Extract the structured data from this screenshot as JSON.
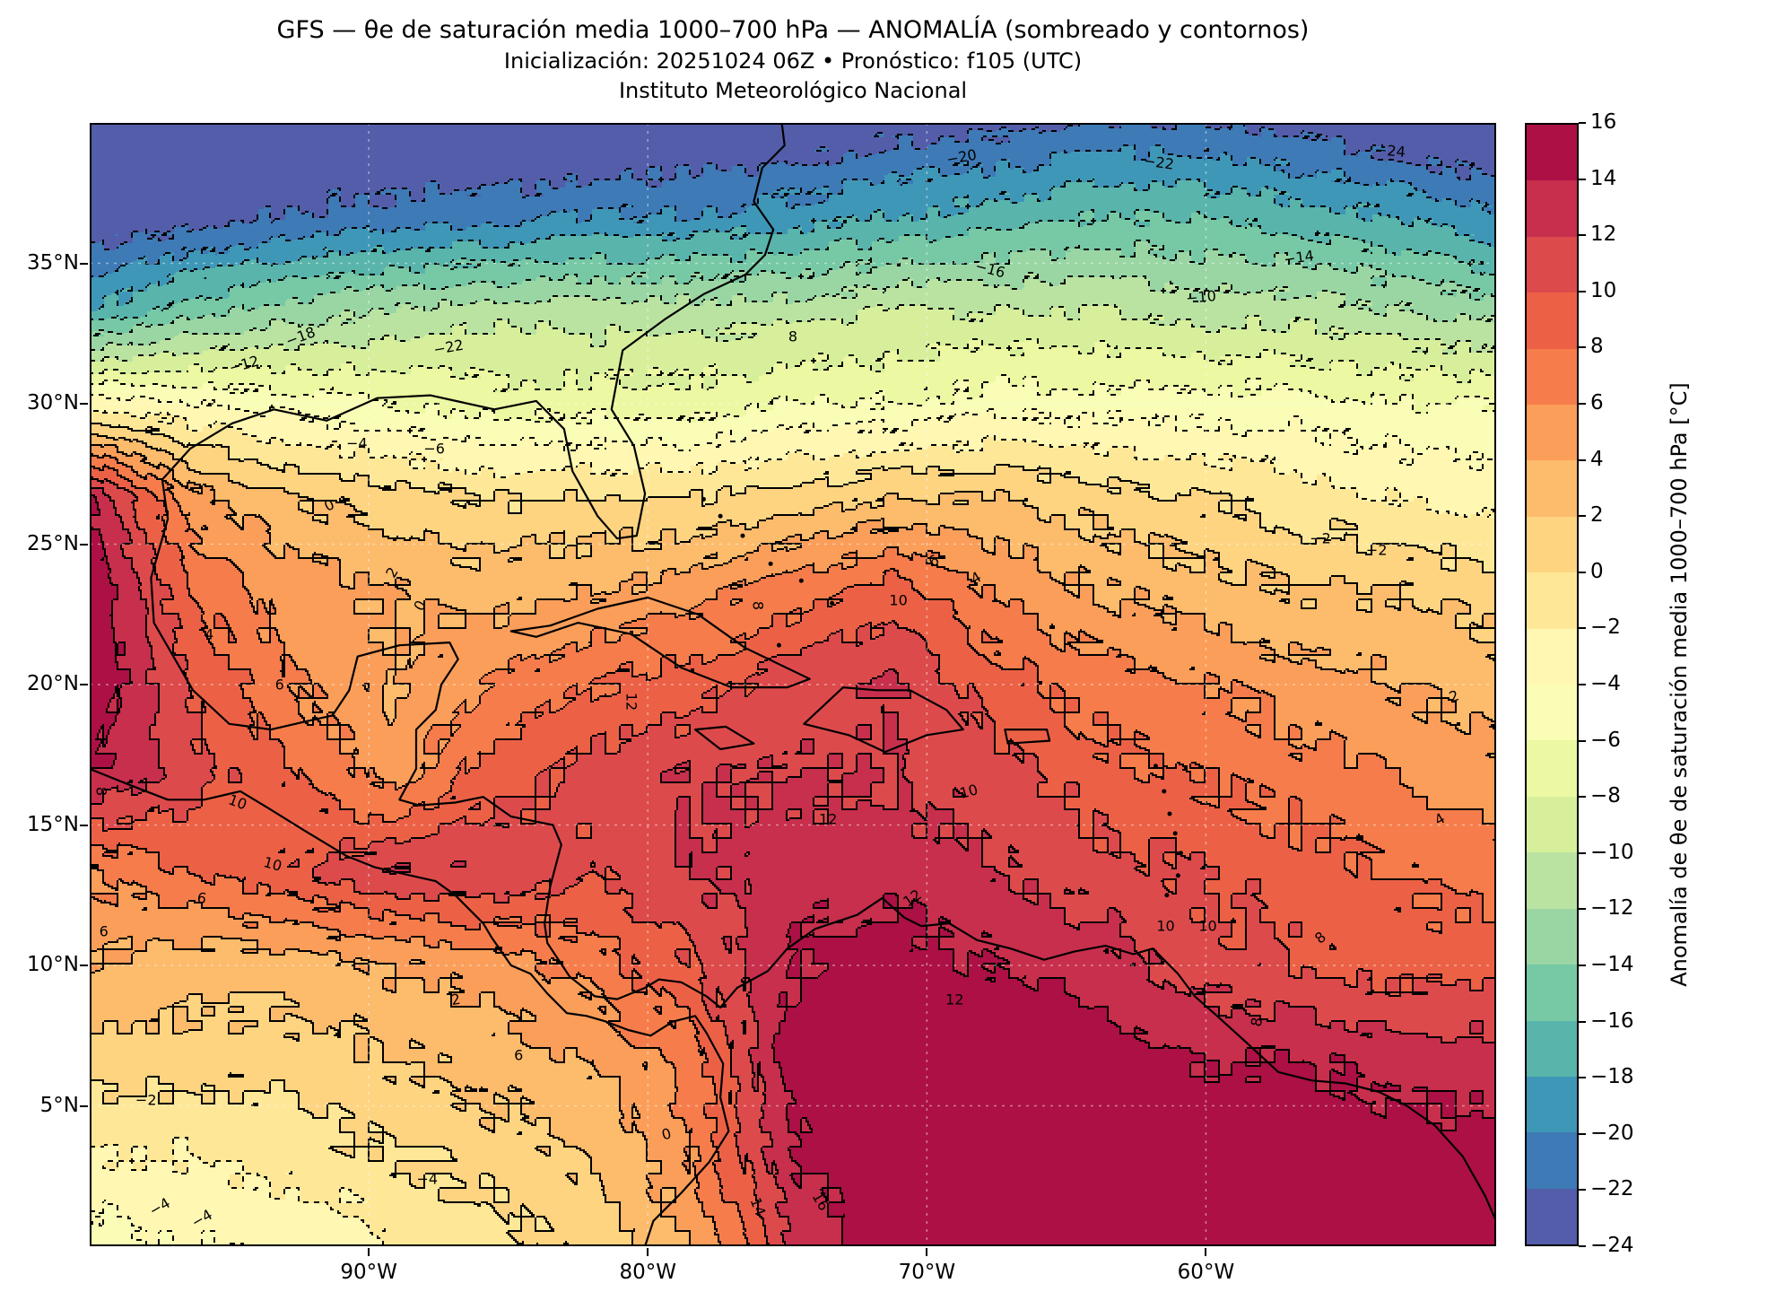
{
  "header": {
    "title_line1": "GFS — θe de saturación media 1000–700 hPa — ANOMALÍA (sombreado y contornos)",
    "title_line2": "Inicialización: 20251024 06Z   •   Pronóstico: f105 (UTC)",
    "title_line3": "Instituto Meteorológico Nacional"
  },
  "chart_data": {
    "type": "heatmap",
    "title": "GFS — θe de saturación media 1000–700 hPa — ANOMALÍA (sombreado y contornos)",
    "subtitle": "Inicialización: 20251024 06Z • Pronóstico: f105 (UTC)",
    "source": "Instituto Meteorológico Nacional",
    "model": "GFS",
    "init_time": "20251024 06Z",
    "forecast_hour": "f105 (UTC)",
    "grid_on": true,
    "contour_interval": 2,
    "negative_contours": "dotted",
    "positive_contours": "solid",
    "x_ticks": [
      {
        "label": "90°W",
        "lon": 90
      },
      {
        "label": "80°W",
        "lon": 80
      },
      {
        "label": "70°W",
        "lon": 70
      },
      {
        "label": "60°W",
        "lon": 60
      }
    ],
    "y_ticks": [
      {
        "label": "35°N",
        "lat": 35
      },
      {
        "label": "30°N",
        "lat": 30
      },
      {
        "label": "25°N",
        "lat": 25
      },
      {
        "label": "20°N",
        "lat": 20
      },
      {
        "label": "15°N",
        "lat": 15
      },
      {
        "label": "10°N",
        "lat": 10
      },
      {
        "label": "5°N",
        "lat": 5
      }
    ],
    "extent": {
      "lon_west_deg_w": 100.0,
      "lon_east_deg_w": 49.6,
      "lat_south": 0.0,
      "lat_north": 40.0
    },
    "colorbar": {
      "label": "Anomalía de θe de saturación media 1000–700 hPa [°C]",
      "min": -24,
      "max": 16,
      "step": 2
    },
    "colormap_low_to_high": [
      "#5e4fa2",
      "#3288bd",
      "#66c2a5",
      "#abdda4",
      "#e6f598",
      "#ffffbf",
      "#fee08b",
      "#fdae61",
      "#f46d43",
      "#d53e4f",
      "#9e0142"
    ],
    "field_grid": {
      "units": "degC anomaly",
      "lats": [
        40,
        36.67,
        33.33,
        30,
        26.67,
        23.33,
        20,
        16.67,
        13.33,
        10,
        6.67,
        3.33,
        0
      ],
      "lons_deg_w": [
        100,
        96.4,
        92.8,
        89.2,
        85.6,
        82,
        78.4,
        74.8,
        71.2,
        67.6,
        64,
        60.4,
        56.8,
        53.2,
        49.6
      ],
      "values": [
        [
          -25,
          -25,
          -25,
          -25,
          -25,
          -25,
          -24,
          -24,
          -23,
          -23,
          -22,
          -22,
          -23,
          -24,
          -25
        ],
        [
          -24,
          -23,
          -22,
          -21,
          -21,
          -20,
          -20,
          -19,
          -18,
          -17,
          -16,
          -16,
          -17,
          -18,
          -20
        ],
        [
          -18,
          -15,
          -13,
          -12,
          -11,
          -11,
          -11,
          -11,
          -10,
          -10,
          -10,
          -11,
          -11,
          -12,
          -13
        ],
        [
          -3,
          -4,
          -5,
          -6,
          -7,
          -7,
          -7,
          -6,
          -6,
          -5,
          -5,
          -5,
          -5,
          -6,
          -6
        ],
        [
          14,
          5,
          2,
          1,
          0,
          0,
          0,
          1,
          2,
          2,
          1,
          0,
          -1,
          -2,
          -3
        ],
        [
          16,
          8,
          5,
          4,
          3,
          4,
          5,
          7,
          9,
          6,
          4,
          3,
          2,
          2,
          1
        ],
        [
          16,
          10,
          6,
          4,
          6,
          8,
          9,
          11,
          12,
          9,
          7,
          6,
          5,
          4,
          3
        ],
        [
          14,
          11,
          8,
          5,
          9,
          11,
          12,
          12,
          12,
          11,
          9,
          8,
          7,
          6,
          5
        ],
        [
          6,
          8,
          10,
          12,
          12,
          10,
          12,
          13,
          13,
          12,
          11,
          10,
          9,
          8,
          7
        ],
        [
          4,
          3,
          3,
          4,
          5,
          7,
          10,
          14,
          15,
          14,
          13,
          11,
          10,
          9,
          9
        ],
        [
          1,
          1,
          1,
          2,
          3,
          4,
          7,
          15,
          16,
          16,
          15,
          14,
          14,
          13,
          13
        ],
        [
          -2,
          -2,
          -1,
          0,
          1,
          2,
          6,
          14,
          16,
          16,
          16,
          16,
          16,
          15,
          15
        ],
        [
          -5,
          -4,
          -4,
          -2,
          -1,
          1,
          4,
          12,
          16,
          16,
          16,
          16,
          16,
          16,
          16
        ]
      ]
    },
    "contour_labels": [
      {
        "v": -20,
        "x": 62,
        "y": 3,
        "r": -10
      },
      {
        "v": -22,
        "x": 76,
        "y": 3.5,
        "r": 8
      },
      {
        "v": -24,
        "x": 92.5,
        "y": 2.5,
        "r": 5
      },
      {
        "v": -16,
        "x": 64,
        "y": 13,
        "r": 15
      },
      {
        "v": -14,
        "x": 86,
        "y": 12,
        "r": -8
      },
      {
        "v": -10,
        "x": 79,
        "y": 15.5,
        "r": -5
      },
      {
        "v": 8,
        "x": 50,
        "y": 19,
        "r": 0
      },
      {
        "v": -18,
        "x": 15,
        "y": 19,
        "r": -20
      },
      {
        "v": -22,
        "x": 25.5,
        "y": 20,
        "r": -10
      },
      {
        "v": -12,
        "x": 11,
        "y": 21.5,
        "r": -15
      },
      {
        "v": -4,
        "x": 19,
        "y": 28.5,
        "r": 0
      },
      {
        "v": -6,
        "x": 24.5,
        "y": 29,
        "r": 0
      },
      {
        "v": 0,
        "x": 17,
        "y": 34,
        "r": -25
      },
      {
        "v": -2,
        "x": 87.5,
        "y": 37,
        "r": 0
      },
      {
        "v": -2,
        "x": 91.5,
        "y": 38,
        "r": 0
      },
      {
        "v": 2,
        "x": 21.5,
        "y": 40,
        "r": -60
      },
      {
        "v": 0,
        "x": 23.5,
        "y": 43,
        "r": -60
      },
      {
        "v": 6,
        "x": 60,
        "y": 39,
        "r": -30
      },
      {
        "v": 4,
        "x": 63,
        "y": 40.5,
        "r": -30
      },
      {
        "v": 10,
        "x": 57.5,
        "y": 42.5,
        "r": 0
      },
      {
        "v": 8,
        "x": 47.5,
        "y": 43,
        "r": 90
      },
      {
        "v": 4,
        "x": 8.5,
        "y": 45.5,
        "r": 0
      },
      {
        "v": 6,
        "x": 13.5,
        "y": 50,
        "r": 0
      },
      {
        "v": 12,
        "x": 38.5,
        "y": 51.5,
        "r": 90
      },
      {
        "v": 2,
        "x": 97,
        "y": 51,
        "r": -20
      },
      {
        "v": 8,
        "x": 0.8,
        "y": 59.5,
        "r": 90
      },
      {
        "v": 10,
        "x": 10.5,
        "y": 60.5,
        "r": 20
      },
      {
        "v": 10,
        "x": 62.5,
        "y": 59.5,
        "r": -15
      },
      {
        "v": 12,
        "x": 52.5,
        "y": 62,
        "r": 0
      },
      {
        "v": 4,
        "x": 96,
        "y": 62,
        "r": -30
      },
      {
        "v": 10,
        "x": 13,
        "y": 66,
        "r": 15
      },
      {
        "v": 6,
        "x": 8,
        "y": 69,
        "r": 10
      },
      {
        "v": 12,
        "x": 58.5,
        "y": 69,
        "r": -35
      },
      {
        "v": 10,
        "x": 76.5,
        "y": 71.5,
        "r": 0
      },
      {
        "v": 10,
        "x": 79.5,
        "y": 71.5,
        "r": 0
      },
      {
        "v": 8,
        "x": 87.5,
        "y": 72.5,
        "r": -40
      },
      {
        "v": 6,
        "x": 1,
        "y": 72,
        "r": 0
      },
      {
        "v": 2,
        "x": 26,
        "y": 78,
        "r": -10
      },
      {
        "v": 6,
        "x": 30.5,
        "y": 83,
        "r": 0
      },
      {
        "v": 12,
        "x": 61.5,
        "y": 78,
        "r": 0
      },
      {
        "v": 8,
        "x": 83,
        "y": 80,
        "r": -80
      },
      {
        "v": 0,
        "x": 41,
        "y": 90,
        "r": -15
      },
      {
        "v": -2,
        "x": 4,
        "y": 87,
        "r": 0
      },
      {
        "v": -4,
        "x": 24,
        "y": 94,
        "r": 0
      },
      {
        "v": -4,
        "x": 5,
        "y": 96.5,
        "r": -30
      },
      {
        "v": -4,
        "x": 8,
        "y": 97.5,
        "r": -30
      },
      {
        "v": 16,
        "x": 52,
        "y": 96,
        "r": 60
      },
      {
        "v": 14,
        "x": 47.5,
        "y": 96.5,
        "r": 70
      }
    ],
    "coastlines_lonlat_deg_w": {
      "us_gulf_atlantic": [
        [
          97.2,
          25.9
        ],
        [
          97.4,
          27.3
        ],
        [
          96.4,
          28.4
        ],
        [
          94.9,
          29.3
        ],
        [
          93.4,
          29.8
        ],
        [
          91.5,
          29.4
        ],
        [
          89.7,
          30.2
        ],
        [
          87.8,
          30.3
        ],
        [
          85.5,
          29.8
        ],
        [
          84.0,
          30.1
        ],
        [
          83.0,
          29.1
        ],
        [
          82.7,
          27.6
        ],
        [
          81.8,
          26.0
        ],
        [
          81.1,
          25.2
        ],
        [
          80.4,
          25.3
        ],
        [
          80.1,
          26.8
        ],
        [
          80.5,
          28.5
        ],
        [
          81.3,
          29.8
        ],
        [
          80.9,
          31.9
        ],
        [
          79.4,
          33.0
        ],
        [
          78.0,
          33.9
        ],
        [
          76.5,
          34.6
        ],
        [
          75.8,
          35.3
        ],
        [
          75.5,
          36.2
        ],
        [
          76.2,
          37.2
        ],
        [
          75.9,
          38.4
        ],
        [
          75.1,
          39.2
        ],
        [
          75.2,
          40.0
        ]
      ],
      "mexico_central_america": [
        [
          97.2,
          25.9
        ],
        [
          97.8,
          23.8
        ],
        [
          97.7,
          22.2
        ],
        [
          96.3,
          19.8
        ],
        [
          95.0,
          18.6
        ],
        [
          93.5,
          18.4
        ],
        [
          92.2,
          18.7
        ],
        [
          91.3,
          18.9
        ],
        [
          90.7,
          19.8
        ],
        [
          90.4,
          21.0
        ],
        [
          88.9,
          21.4
        ],
        [
          87.1,
          21.5
        ],
        [
          86.8,
          20.9
        ],
        [
          87.4,
          20.0
        ],
        [
          87.6,
          19.1
        ],
        [
          88.3,
          18.4
        ],
        [
          88.3,
          17.0
        ],
        [
          88.9,
          15.9
        ],
        [
          88.2,
          15.7
        ],
        [
          86.9,
          15.8
        ],
        [
          85.9,
          16.0
        ],
        [
          84.9,
          15.3
        ],
        [
          83.4,
          15.0
        ],
        [
          83.1,
          14.3
        ],
        [
          83.5,
          12.8
        ],
        [
          83.7,
          11.5
        ],
        [
          83.6,
          10.8
        ],
        [
          82.8,
          9.6
        ],
        [
          81.9,
          8.9
        ],
        [
          81.1,
          8.8
        ],
        [
          80.1,
          9.2
        ],
        [
          79.6,
          9.5
        ],
        [
          78.8,
          9.4
        ],
        [
          77.9,
          8.9
        ],
        [
          77.4,
          8.5
        ]
      ],
      "south_america_north": [
        [
          77.4,
          8.5
        ],
        [
          76.8,
          9.2
        ],
        [
          75.7,
          9.8
        ],
        [
          75.0,
          10.6
        ],
        [
          74.0,
          11.3
        ],
        [
          72.5,
          11.8
        ],
        [
          71.6,
          12.4
        ],
        [
          70.8,
          11.7
        ],
        [
          70.2,
          11.4
        ],
        [
          69.2,
          11.5
        ],
        [
          68.2,
          10.9
        ],
        [
          67.0,
          10.6
        ],
        [
          65.8,
          10.2
        ],
        [
          64.7,
          10.5
        ],
        [
          63.6,
          10.7
        ],
        [
          62.6,
          10.4
        ],
        [
          61.9,
          10.6
        ],
        [
          61.0,
          9.7
        ],
        [
          60.4,
          8.9
        ],
        [
          59.6,
          8.2
        ],
        [
          58.6,
          7.3
        ],
        [
          57.4,
          6.2
        ],
        [
          56.2,
          5.9
        ],
        [
          55.0,
          5.8
        ],
        [
          53.8,
          5.5
        ],
        [
          52.8,
          5.0
        ],
        [
          51.8,
          4.3
        ],
        [
          50.8,
          3.2
        ],
        [
          50.0,
          1.8
        ],
        [
          49.6,
          0.9
        ]
      ],
      "pacific_coast": [
        [
          100.0,
          17.0
        ],
        [
          98.5,
          16.4
        ],
        [
          97.2,
          15.9
        ],
        [
          95.9,
          15.9
        ],
        [
          94.6,
          16.2
        ],
        [
          93.6,
          15.6
        ],
        [
          92.3,
          14.8
        ],
        [
          90.8,
          13.9
        ],
        [
          89.8,
          13.5
        ],
        [
          88.5,
          13.2
        ],
        [
          87.6,
          13.0
        ],
        [
          86.9,
          12.5
        ],
        [
          85.9,
          11.5
        ],
        [
          85.6,
          11.0
        ],
        [
          84.9,
          10.0
        ],
        [
          84.2,
          9.7
        ],
        [
          83.6,
          9.0
        ],
        [
          82.9,
          8.3
        ],
        [
          82.2,
          8.2
        ],
        [
          81.5,
          8.0
        ],
        [
          80.7,
          7.7
        ],
        [
          79.9,
          7.5
        ],
        [
          79.1,
          8.0
        ],
        [
          78.3,
          8.2
        ],
        [
          77.9,
          7.6
        ],
        [
          77.3,
          6.5
        ],
        [
          77.4,
          5.3
        ],
        [
          77.1,
          4.1
        ],
        [
          77.8,
          3.0
        ],
        [
          78.8,
          1.9
        ],
        [
          79.8,
          0.9
        ],
        [
          80.1,
          0.0
        ]
      ],
      "cuba": [
        [
          84.9,
          21.9
        ],
        [
          83.5,
          22.1
        ],
        [
          81.8,
          22.7
        ],
        [
          80.0,
          23.1
        ],
        [
          78.2,
          22.5
        ],
        [
          76.5,
          21.3
        ],
        [
          74.2,
          20.2
        ],
        [
          75.0,
          19.9
        ],
        [
          77.0,
          19.9
        ],
        [
          78.8,
          20.6
        ],
        [
          80.6,
          21.8
        ],
        [
          82.5,
          22.2
        ],
        [
          84.0,
          21.7
        ],
        [
          84.9,
          21.9
        ]
      ],
      "hispaniola": [
        [
          74.4,
          18.6
        ],
        [
          73.0,
          19.9
        ],
        [
          71.8,
          19.8
        ],
        [
          70.6,
          19.8
        ],
        [
          69.3,
          19.1
        ],
        [
          68.7,
          18.4
        ],
        [
          70.0,
          18.2
        ],
        [
          71.5,
          17.6
        ],
        [
          72.8,
          18.2
        ],
        [
          74.4,
          18.6
        ]
      ],
      "jamaica": [
        [
          78.3,
          18.4
        ],
        [
          77.2,
          18.5
        ],
        [
          76.2,
          17.9
        ],
        [
          77.4,
          17.7
        ],
        [
          78.3,
          18.4
        ]
      ],
      "puerto_rico": [
        [
          67.2,
          18.4
        ],
        [
          65.7,
          18.4
        ],
        [
          65.6,
          18.0
        ],
        [
          67.1,
          17.9
        ],
        [
          67.2,
          18.4
        ]
      ],
      "lesser_antilles_islands": [
        [
          61.8,
          17.1
        ],
        [
          61.5,
          16.2
        ],
        [
          61.3,
          15.4
        ],
        [
          61.1,
          14.7
        ],
        [
          60.9,
          14.0
        ],
        [
          61.0,
          13.2
        ],
        [
          61.4,
          12.5
        ]
      ],
      "bahamas_islands": [
        [
          78.0,
          26.6
        ],
        [
          77.4,
          26.0
        ],
        [
          76.6,
          25.3
        ],
        [
          75.6,
          24.3
        ],
        [
          74.5,
          23.7
        ],
        [
          73.4,
          22.9
        ],
        [
          75.3,
          21.4
        ]
      ]
    }
  }
}
